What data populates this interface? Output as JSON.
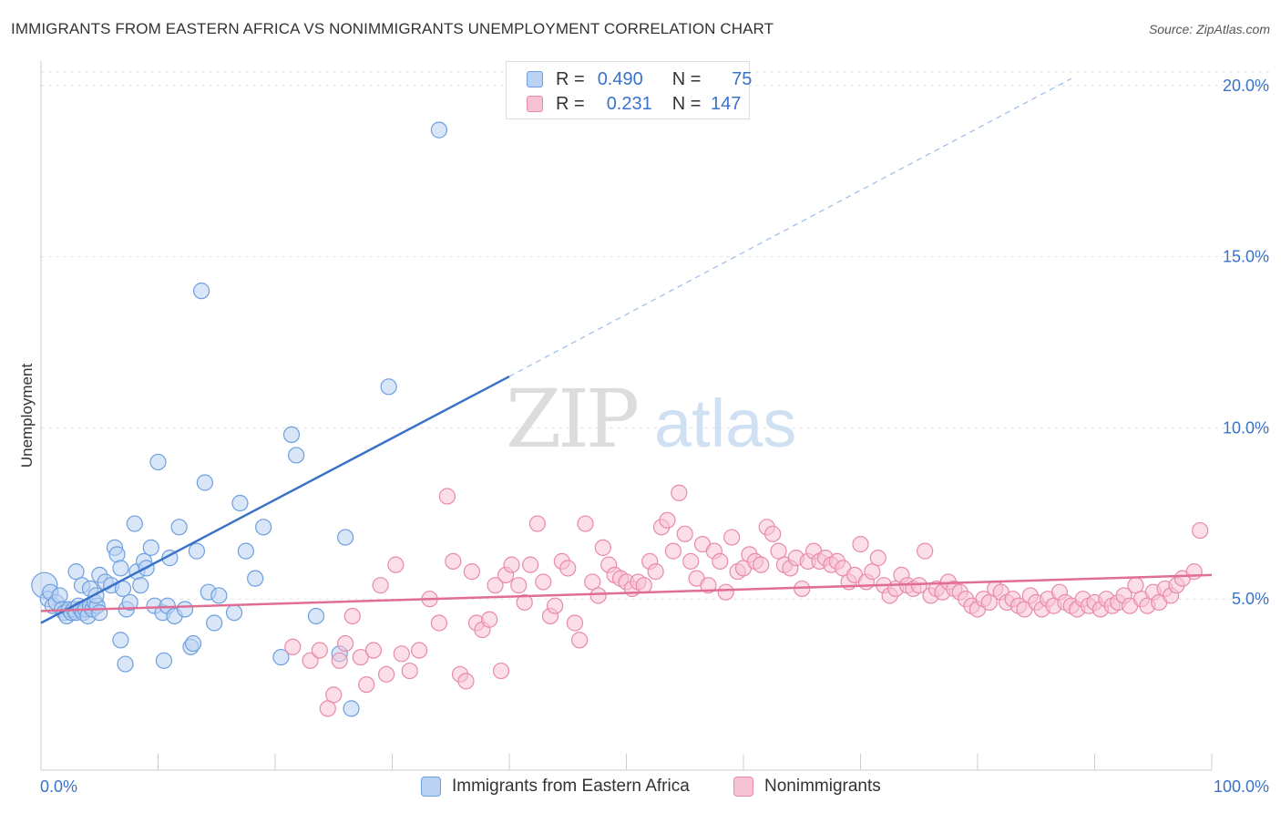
{
  "title": "IMMIGRANTS FROM EASTERN AFRICA VS NONIMMIGRANTS UNEMPLOYMENT CORRELATION CHART",
  "source": "Source: ZipAtlas.com",
  "watermark": {
    "zip": "ZIP",
    "atlas": "atlas"
  },
  "legend": {
    "r_label": "R =",
    "n_label": "N =",
    "series": [
      {
        "r": "0.490",
        "n": "75",
        "color": "#6d9fe0",
        "fill": "#b9d1f2"
      },
      {
        "r": "0.231",
        "n": "147",
        "color": "#e88aa8",
        "fill": "#f7c3d4"
      }
    ]
  },
  "chart_data": {
    "type": "scatter",
    "title": "IMMIGRANTS FROM EASTERN AFRICA VS NONIMMIGRANTS UNEMPLOYMENT CORRELATION CHART",
    "xlabel": "",
    "ylabel": "Unemployment",
    "xlim": [
      0,
      100
    ],
    "ylim": [
      0,
      20.5
    ],
    "x_tick_labels": [
      "0.0%",
      "100.0%"
    ],
    "y_ticks": [
      5,
      10,
      15,
      20
    ],
    "y_tick_labels": [
      "5.0%",
      "10.0%",
      "15.0%",
      "20.0%"
    ],
    "grid": true,
    "series": [
      {
        "name": "Immigrants from Eastern Africa",
        "color": "#3a72c8",
        "fill": "#b9d1f2",
        "stroke": "#6d9fe0",
        "trend": {
          "x0": 0,
          "y0": 4.3,
          "x1": 40,
          "y1": 11.5,
          "dashed_to_x": 88,
          "dashed_to_y": 20.2
        },
        "points": [
          [
            0.3,
            5.4
          ],
          [
            0.6,
            5.0
          ],
          [
            0.8,
            5.2
          ],
          [
            1.0,
            4.8
          ],
          [
            1.3,
            4.9
          ],
          [
            1.6,
            5.1
          ],
          [
            1.8,
            4.7
          ],
          [
            2.0,
            4.6
          ],
          [
            2.2,
            4.5
          ],
          [
            2.4,
            4.7
          ],
          [
            2.6,
            4.6
          ],
          [
            2.8,
            4.7
          ],
          [
            3.0,
            4.6
          ],
          [
            3.2,
            4.8
          ],
          [
            3.4,
            4.7
          ],
          [
            3.6,
            4.6
          ],
          [
            3.8,
            4.7
          ],
          [
            4.0,
            4.5
          ],
          [
            4.2,
            4.8
          ],
          [
            4.4,
            4.7
          ],
          [
            4.6,
            4.9
          ],
          [
            4.8,
            4.8
          ],
          [
            5.0,
            4.6
          ],
          [
            3.0,
            5.8
          ],
          [
            3.5,
            5.4
          ],
          [
            4.2,
            5.3
          ],
          [
            4.7,
            5.1
          ],
          [
            5.0,
            5.7
          ],
          [
            5.5,
            5.5
          ],
          [
            6.0,
            5.4
          ],
          [
            6.3,
            6.5
          ],
          [
            6.5,
            6.3
          ],
          [
            6.8,
            5.9
          ],
          [
            7.0,
            5.3
          ],
          [
            7.3,
            4.7
          ],
          [
            7.6,
            4.9
          ],
          [
            8.0,
            7.2
          ],
          [
            8.2,
            5.8
          ],
          [
            8.5,
            5.4
          ],
          [
            8.8,
            6.1
          ],
          [
            9.0,
            5.9
          ],
          [
            9.4,
            6.5
          ],
          [
            9.7,
            4.8
          ],
          [
            10.0,
            9.0
          ],
          [
            10.4,
            4.6
          ],
          [
            10.8,
            4.8
          ],
          [
            11.0,
            6.2
          ],
          [
            11.4,
            4.5
          ],
          [
            11.8,
            7.1
          ],
          [
            12.3,
            4.7
          ],
          [
            12.8,
            3.6
          ],
          [
            13.0,
            3.7
          ],
          [
            13.3,
            6.4
          ],
          [
            13.7,
            14.0
          ],
          [
            14.0,
            8.4
          ],
          [
            14.3,
            5.2
          ],
          [
            14.8,
            4.3
          ],
          [
            15.2,
            5.1
          ],
          [
            6.8,
            3.8
          ],
          [
            7.2,
            3.1
          ],
          [
            10.5,
            3.2
          ],
          [
            16.5,
            4.6
          ],
          [
            17.0,
            7.8
          ],
          [
            17.5,
            6.4
          ],
          [
            18.3,
            5.6
          ],
          [
            19.0,
            7.1
          ],
          [
            20.5,
            3.3
          ],
          [
            21.4,
            9.8
          ],
          [
            21.8,
            9.2
          ],
          [
            23.5,
            4.5
          ],
          [
            25.5,
            3.4
          ],
          [
            26.0,
            6.8
          ],
          [
            26.5,
            1.8
          ],
          [
            29.7,
            11.2
          ],
          [
            34.0,
            18.7
          ]
        ]
      },
      {
        "name": "Nonimmigrants",
        "color": "#e06d94",
        "fill": "#f7c3d4",
        "stroke": "#e88aa8",
        "trend": {
          "x0": 0,
          "y0": 4.65,
          "x1": 100,
          "y1": 5.7
        },
        "points": [
          [
            21.5,
            3.6
          ],
          [
            23.0,
            3.2
          ],
          [
            23.8,
            3.5
          ],
          [
            24.5,
            1.8
          ],
          [
            25.0,
            2.2
          ],
          [
            25.5,
            3.2
          ],
          [
            26.0,
            3.7
          ],
          [
            26.6,
            4.5
          ],
          [
            27.3,
            3.3
          ],
          [
            27.8,
            2.5
          ],
          [
            28.4,
            3.5
          ],
          [
            29.0,
            5.4
          ],
          [
            29.5,
            2.8
          ],
          [
            30.3,
            6.0
          ],
          [
            30.8,
            3.4
          ],
          [
            31.5,
            2.9
          ],
          [
            32.3,
            3.5
          ],
          [
            33.2,
            5.0
          ],
          [
            34.0,
            4.3
          ],
          [
            34.7,
            8.0
          ],
          [
            35.2,
            6.1
          ],
          [
            35.8,
            2.8
          ],
          [
            36.3,
            2.6
          ],
          [
            36.8,
            5.8
          ],
          [
            37.2,
            4.3
          ],
          [
            37.7,
            4.1
          ],
          [
            38.3,
            4.4
          ],
          [
            38.8,
            5.4
          ],
          [
            39.3,
            2.9
          ],
          [
            39.7,
            5.7
          ],
          [
            40.2,
            6.0
          ],
          [
            40.8,
            5.4
          ],
          [
            41.3,
            4.9
          ],
          [
            41.8,
            6.0
          ],
          [
            42.4,
            7.2
          ],
          [
            42.9,
            5.5
          ],
          [
            43.5,
            4.5
          ],
          [
            43.9,
            4.8
          ],
          [
            44.5,
            6.1
          ],
          [
            45.0,
            5.9
          ],
          [
            45.6,
            4.3
          ],
          [
            46.0,
            3.8
          ],
          [
            46.5,
            7.2
          ],
          [
            47.1,
            5.5
          ],
          [
            47.6,
            5.1
          ],
          [
            48.0,
            6.5
          ],
          [
            48.5,
            6.0
          ],
          [
            49.0,
            5.7
          ],
          [
            49.5,
            5.6
          ],
          [
            50.0,
            5.5
          ],
          [
            50.5,
            5.3
          ],
          [
            51.0,
            5.5
          ],
          [
            51.5,
            5.4
          ],
          [
            52.0,
            6.1
          ],
          [
            52.5,
            5.8
          ],
          [
            53.0,
            7.1
          ],
          [
            53.5,
            7.3
          ],
          [
            54.0,
            6.4
          ],
          [
            54.5,
            8.1
          ],
          [
            55.0,
            6.9
          ],
          [
            55.5,
            6.1
          ],
          [
            56.0,
            5.6
          ],
          [
            56.5,
            6.6
          ],
          [
            57.0,
            5.4
          ],
          [
            57.5,
            6.4
          ],
          [
            58.0,
            6.1
          ],
          [
            58.5,
            5.2
          ],
          [
            59.0,
            6.8
          ],
          [
            59.5,
            5.8
          ],
          [
            60.0,
            5.9
          ],
          [
            60.5,
            6.3
          ],
          [
            61.0,
            6.1
          ],
          [
            61.5,
            6.0
          ],
          [
            62.0,
            7.1
          ],
          [
            62.5,
            6.9
          ],
          [
            63.0,
            6.4
          ],
          [
            63.5,
            6.0
          ],
          [
            64.0,
            5.9
          ],
          [
            64.5,
            6.2
          ],
          [
            65.0,
            5.3
          ],
          [
            65.5,
            6.1
          ],
          [
            66.0,
            6.4
          ],
          [
            66.5,
            6.1
          ],
          [
            67.0,
            6.2
          ],
          [
            67.5,
            6.0
          ],
          [
            68.0,
            6.1
          ],
          [
            68.5,
            5.9
          ],
          [
            69.0,
            5.5
          ],
          [
            69.5,
            5.7
          ],
          [
            70.0,
            6.6
          ],
          [
            70.5,
            5.5
          ],
          [
            71.0,
            5.8
          ],
          [
            71.5,
            6.2
          ],
          [
            72.0,
            5.4
          ],
          [
            72.5,
            5.1
          ],
          [
            73.0,
            5.3
          ],
          [
            73.5,
            5.7
          ],
          [
            74.0,
            5.4
          ],
          [
            74.5,
            5.3
          ],
          [
            75.0,
            5.4
          ],
          [
            75.5,
            6.4
          ],
          [
            76.0,
            5.1
          ],
          [
            76.5,
            5.3
          ],
          [
            77.0,
            5.2
          ],
          [
            77.5,
            5.5
          ],
          [
            78.0,
            5.3
          ],
          [
            78.5,
            5.2
          ],
          [
            79.0,
            5.0
          ],
          [
            79.5,
            4.8
          ],
          [
            80.0,
            4.7
          ],
          [
            80.5,
            5.0
          ],
          [
            81.0,
            4.9
          ],
          [
            81.5,
            5.3
          ],
          [
            82.0,
            5.2
          ],
          [
            82.5,
            4.9
          ],
          [
            83.0,
            5.0
          ],
          [
            83.5,
            4.8
          ],
          [
            84.0,
            4.7
          ],
          [
            84.5,
            5.1
          ],
          [
            85.0,
            4.9
          ],
          [
            85.5,
            4.7
          ],
          [
            86.0,
            5.0
          ],
          [
            86.5,
            4.8
          ],
          [
            87.0,
            5.2
          ],
          [
            87.5,
            4.9
          ],
          [
            88.0,
            4.8
          ],
          [
            88.5,
            4.7
          ],
          [
            89.0,
            5.0
          ],
          [
            89.5,
            4.8
          ],
          [
            90.0,
            4.9
          ],
          [
            90.5,
            4.7
          ],
          [
            91.0,
            5.0
          ],
          [
            91.5,
            4.8
          ],
          [
            92.0,
            4.9
          ],
          [
            92.5,
            5.1
          ],
          [
            93.0,
            4.8
          ],
          [
            93.5,
            5.4
          ],
          [
            94.0,
            5.0
          ],
          [
            94.5,
            4.8
          ],
          [
            95.0,
            5.2
          ],
          [
            95.5,
            4.9
          ],
          [
            96.0,
            5.3
          ],
          [
            96.5,
            5.1
          ],
          [
            97.0,
            5.4
          ],
          [
            97.5,
            5.6
          ],
          [
            98.5,
            5.8
          ],
          [
            99.0,
            7.0
          ]
        ]
      }
    ]
  },
  "bottom_legend": [
    "Immigrants from Eastern Africa",
    "Nonimmigrants"
  ]
}
